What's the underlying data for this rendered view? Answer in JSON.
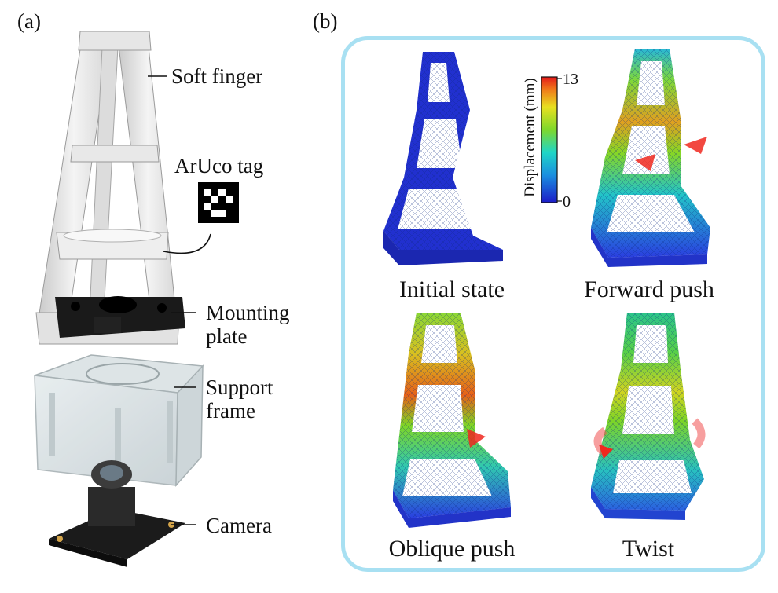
{
  "panel_a": {
    "label": "(a)",
    "parts": [
      {
        "name": "soft-finger",
        "text": "Soft finger"
      },
      {
        "name": "aruco-tag",
        "text": "ArUco tag"
      },
      {
        "name": "mounting-plate",
        "text": "Mounting\nplate"
      },
      {
        "name": "support-frame",
        "text": "Support\nframe"
      },
      {
        "name": "camera",
        "text": "Camera"
      }
    ]
  },
  "panel_b": {
    "label": "(b)",
    "colorbar": {
      "label": "Displacement (mm)",
      "max": "13",
      "min": "0"
    },
    "states": [
      {
        "name": "initial",
        "caption": "Initial state"
      },
      {
        "name": "forward",
        "caption": "Forward push"
      },
      {
        "name": "oblique",
        "caption": "Oblique push"
      },
      {
        "name": "twist",
        "caption": "Twist"
      }
    ]
  }
}
